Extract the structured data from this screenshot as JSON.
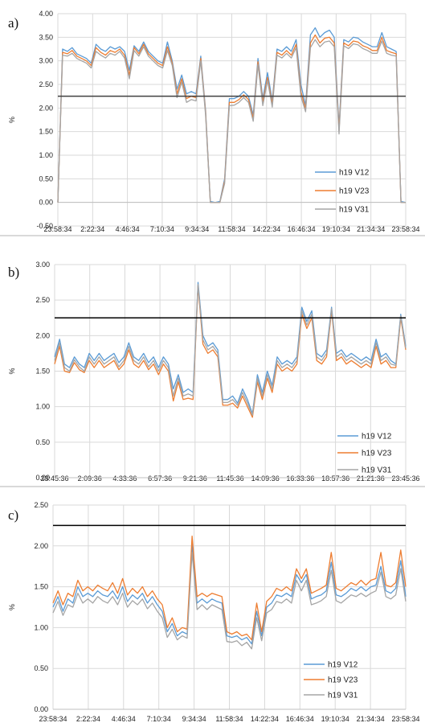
{
  "chart_data": [
    {
      "type": "line",
      "panel_label": "a)",
      "ylabel": "%",
      "ylim": [
        -0.5,
        4.0
      ],
      "yticks": [
        -0.5,
        0.0,
        0.5,
        1.0,
        1.5,
        2.0,
        2.5,
        3.0,
        3.5,
        4.0
      ],
      "ytick_labels": [
        "-0.50",
        "0.00",
        "0.50",
        "1.00",
        "1.50",
        "2.00",
        "2.50",
        "3.00",
        "3.50",
        "4.00"
      ],
      "xtick_labels": [
        "23:58:34",
        "2:22:34",
        "4:46:34",
        "7:10:34",
        "9:34:34",
        "11:58:34",
        "14:22:34",
        "16:46:34",
        "19:10:34",
        "21:34:34",
        "23:58:34"
      ],
      "grid": true,
      "legend_position": "bottom-right",
      "threshold": 2.25,
      "colors": {
        "h19 V12": "#5b9bd5",
        "h19 V23": "#ed7d31",
        "h19 V31": "#a5a5a5",
        "threshold": "#404040"
      },
      "series": [
        {
          "name": "h19 V12",
          "values": [
            0.0,
            3.25,
            3.2,
            3.28,
            3.15,
            3.1,
            3.05,
            2.95,
            3.35,
            3.25,
            3.2,
            3.3,
            3.25,
            3.3,
            3.2,
            2.8,
            3.32,
            3.2,
            3.4,
            3.2,
            3.1,
            3.0,
            2.95,
            3.4,
            3.0,
            2.4,
            2.7,
            2.3,
            2.35,
            2.3,
            3.1,
            1.95,
            0.02,
            0.0,
            0.02,
            0.5,
            2.2,
            2.2,
            2.25,
            2.35,
            2.25,
            1.85,
            3.05,
            2.2,
            2.75,
            2.15,
            3.25,
            3.2,
            3.3,
            3.2,
            3.45,
            2.5,
            2.05,
            3.55,
            3.7,
            3.5,
            3.6,
            3.65,
            3.5,
            1.6,
            3.45,
            3.4,
            3.5,
            3.48,
            3.4,
            3.35,
            3.3,
            3.3,
            3.6,
            3.3,
            3.25,
            3.2,
            0.02,
            0.0
          ]
        },
        {
          "name": "h19 V23",
          "values": [
            0.0,
            3.18,
            3.15,
            3.22,
            3.1,
            3.05,
            3.0,
            2.9,
            3.28,
            3.18,
            3.12,
            3.22,
            3.18,
            3.25,
            3.12,
            2.7,
            3.28,
            3.15,
            3.35,
            3.15,
            3.05,
            2.95,
            2.9,
            3.3,
            2.95,
            2.3,
            2.62,
            2.2,
            2.25,
            2.22,
            3.05,
            1.9,
            0.0,
            0.0,
            0.0,
            0.45,
            2.12,
            2.12,
            2.18,
            2.28,
            2.18,
            1.78,
            2.98,
            2.12,
            2.65,
            2.08,
            3.18,
            3.12,
            3.22,
            3.12,
            3.35,
            2.35,
            1.98,
            3.38,
            3.55,
            3.38,
            3.48,
            3.5,
            3.38,
            1.52,
            3.38,
            3.32,
            3.42,
            3.4,
            3.32,
            3.28,
            3.22,
            3.22,
            3.5,
            3.22,
            3.18,
            3.15,
            0.0,
            0.0
          ]
        },
        {
          "name": "h19 V31",
          "values": [
            0.0,
            3.12,
            3.1,
            3.16,
            3.05,
            3.0,
            2.95,
            2.85,
            3.2,
            3.12,
            3.06,
            3.16,
            3.12,
            3.2,
            3.06,
            2.62,
            3.22,
            3.1,
            3.3,
            3.1,
            3.0,
            2.9,
            2.85,
            3.22,
            2.9,
            2.22,
            2.55,
            2.12,
            2.18,
            2.15,
            3.0,
            1.85,
            0.0,
            0.0,
            0.0,
            0.4,
            2.05,
            2.06,
            2.12,
            2.22,
            2.12,
            1.72,
            2.92,
            2.05,
            2.58,
            2.02,
            3.12,
            3.06,
            3.16,
            3.06,
            3.28,
            2.25,
            1.92,
            3.28,
            3.45,
            3.3,
            3.4,
            3.42,
            3.3,
            1.45,
            3.32,
            3.26,
            3.36,
            3.34,
            3.26,
            3.22,
            3.16,
            3.16,
            3.42,
            3.16,
            3.12,
            3.1,
            0.0,
            0.0
          ]
        }
      ]
    },
    {
      "type": "line",
      "panel_label": "b)",
      "ylabel": "%",
      "ylim": [
        0.0,
        3.0
      ],
      "yticks": [
        0.0,
        0.5,
        1.0,
        1.5,
        2.0,
        2.5,
        3.0
      ],
      "ytick_labels": [
        "0.00",
        "0.50",
        "1.00",
        "1.50",
        "2.00",
        "2.50",
        "3.00"
      ],
      "xtick_labels": [
        "23:45:36",
        "2:09:36",
        "4:33:36",
        "6:57:36",
        "9:21:36",
        "11:45:36",
        "14:09:36",
        "16:33:36",
        "18:57:36",
        "21:21:36",
        "23:45:36"
      ],
      "grid": true,
      "legend_position": "bottom-right",
      "threshold": 2.25,
      "colors": {
        "h19 V12": "#5b9bd5",
        "h19 V23": "#ed7d31",
        "h19 V31": "#a5a5a5",
        "threshold": "#000000"
      },
      "series": [
        {
          "name": "h19 V12",
          "values": [
            1.7,
            1.95,
            1.6,
            1.55,
            1.7,
            1.6,
            1.55,
            1.75,
            1.65,
            1.75,
            1.65,
            1.7,
            1.75,
            1.62,
            1.7,
            1.9,
            1.7,
            1.65,
            1.75,
            1.62,
            1.7,
            1.55,
            1.7,
            1.6,
            1.25,
            1.45,
            1.2,
            1.25,
            1.2,
            2.75,
            2.0,
            1.85,
            1.9,
            1.8,
            1.1,
            1.1,
            1.15,
            1.05,
            1.25,
            1.1,
            0.9,
            1.45,
            1.2,
            1.5,
            1.3,
            1.7,
            1.6,
            1.65,
            1.6,
            1.7,
            2.4,
            2.2,
            2.35,
            1.75,
            1.7,
            1.8,
            2.4,
            1.75,
            1.8,
            1.7,
            1.75,
            1.7,
            1.65,
            1.7,
            1.65,
            1.95,
            1.7,
            1.75,
            1.65,
            1.6,
            2.3,
            1.85
          ]
        },
        {
          "name": "h19 V23",
          "values": [
            1.6,
            1.85,
            1.5,
            1.48,
            1.62,
            1.52,
            1.48,
            1.65,
            1.55,
            1.65,
            1.55,
            1.6,
            1.65,
            1.52,
            1.6,
            1.8,
            1.6,
            1.55,
            1.65,
            1.52,
            1.6,
            1.45,
            1.6,
            1.5,
            1.08,
            1.35,
            1.1,
            1.12,
            1.1,
            2.7,
            1.88,
            1.75,
            1.8,
            1.7,
            1.02,
            1.02,
            1.05,
            0.98,
            1.15,
            1.0,
            0.85,
            1.35,
            1.1,
            1.4,
            1.2,
            1.6,
            1.5,
            1.55,
            1.5,
            1.6,
            2.3,
            2.1,
            2.25,
            1.65,
            1.6,
            1.7,
            2.35,
            1.65,
            1.7,
            1.6,
            1.65,
            1.6,
            1.55,
            1.6,
            1.55,
            1.85,
            1.6,
            1.65,
            1.55,
            1.55,
            2.25,
            1.8
          ]
        },
        {
          "name": "h19 V31",
          "values": [
            1.65,
            1.9,
            1.55,
            1.5,
            1.66,
            1.56,
            1.5,
            1.7,
            1.6,
            1.7,
            1.6,
            1.65,
            1.7,
            1.56,
            1.65,
            1.85,
            1.65,
            1.6,
            1.7,
            1.56,
            1.65,
            1.5,
            1.65,
            1.55,
            1.15,
            1.4,
            1.15,
            1.18,
            1.15,
            2.72,
            1.94,
            1.8,
            1.85,
            1.75,
            1.06,
            1.06,
            1.1,
            1.02,
            1.2,
            1.05,
            0.88,
            1.4,
            1.15,
            1.45,
            1.25,
            1.65,
            1.55,
            1.6,
            1.55,
            1.65,
            2.35,
            2.15,
            2.3,
            1.7,
            1.65,
            1.75,
            2.38,
            1.7,
            1.75,
            1.65,
            1.7,
            1.65,
            1.6,
            1.65,
            1.6,
            1.9,
            1.65,
            1.7,
            1.6,
            1.58,
            2.28,
            1.82
          ]
        }
      ]
    },
    {
      "type": "line",
      "panel_label": "c)",
      "ylabel": "%",
      "ylim": [
        0.0,
        2.5
      ],
      "yticks": [
        0.0,
        0.5,
        1.0,
        1.5,
        2.0,
        2.5
      ],
      "ytick_labels": [
        "0.00",
        "0.50",
        "1.00",
        "1.50",
        "2.00",
        "2.50"
      ],
      "xtick_labels": [
        "23:58:34",
        "2:22:34",
        "4:46:34",
        "7:10:34",
        "9:34:34",
        "11:58:34",
        "14:22:34",
        "16:46:34",
        "19:10:34",
        "21:34:34",
        "23:58:34"
      ],
      "grid": true,
      "legend_position": "bottom-right",
      "threshold": 2.25,
      "colors": {
        "h19 V12": "#5b9bd5",
        "h19 V23": "#ed7d31",
        "h19 V31": "#a5a5a5",
        "threshold": "#000000"
      },
      "series": [
        {
          "name": "h19 V12",
          "values": [
            1.25,
            1.38,
            1.2,
            1.35,
            1.3,
            1.5,
            1.38,
            1.42,
            1.38,
            1.45,
            1.4,
            1.38,
            1.45,
            1.35,
            1.5,
            1.32,
            1.4,
            1.35,
            1.42,
            1.3,
            1.38,
            1.28,
            1.2,
            0.95,
            1.05,
            0.9,
            0.95,
            0.92,
            2.02,
            1.3,
            1.35,
            1.3,
            1.35,
            1.32,
            1.3,
            0.9,
            0.88,
            0.9,
            0.85,
            0.88,
            0.8,
            1.2,
            0.9,
            1.25,
            1.3,
            1.4,
            1.38,
            1.42,
            1.38,
            1.65,
            1.55,
            1.65,
            1.35,
            1.38,
            1.4,
            1.45,
            1.8,
            1.4,
            1.38,
            1.42,
            1.48,
            1.45,
            1.5,
            1.45,
            1.5,
            1.52,
            1.75,
            1.45,
            1.42,
            1.48,
            1.82,
            1.38
          ]
        },
        {
          "name": "h19 V23",
          "values": [
            1.3,
            1.45,
            1.28,
            1.42,
            1.38,
            1.58,
            1.45,
            1.5,
            1.45,
            1.52,
            1.48,
            1.45,
            1.55,
            1.42,
            1.6,
            1.4,
            1.48,
            1.42,
            1.5,
            1.38,
            1.45,
            1.35,
            1.28,
            1.0,
            1.12,
            0.95,
            1.0,
            0.98,
            2.12,
            1.38,
            1.42,
            1.38,
            1.42,
            1.4,
            1.38,
            0.95,
            0.92,
            0.95,
            0.9,
            0.92,
            0.85,
            1.3,
            0.95,
            1.32,
            1.38,
            1.48,
            1.45,
            1.5,
            1.45,
            1.72,
            1.6,
            1.72,
            1.42,
            1.45,
            1.48,
            1.52,
            1.92,
            1.48,
            1.45,
            1.5,
            1.55,
            1.52,
            1.58,
            1.52,
            1.58,
            1.6,
            1.92,
            1.52,
            1.5,
            1.55,
            1.95,
            1.5
          ]
        },
        {
          "name": "h19 V31",
          "values": [
            1.18,
            1.32,
            1.15,
            1.28,
            1.25,
            1.42,
            1.3,
            1.35,
            1.3,
            1.38,
            1.33,
            1.3,
            1.38,
            1.28,
            1.42,
            1.25,
            1.33,
            1.28,
            1.35,
            1.23,
            1.3,
            1.2,
            1.12,
            0.88,
            0.98,
            0.85,
            0.9,
            0.87,
            1.92,
            1.22,
            1.28,
            1.22,
            1.28,
            1.25,
            1.22,
            0.83,
            0.82,
            0.84,
            0.78,
            0.82,
            0.74,
            1.12,
            0.84,
            1.18,
            1.22,
            1.32,
            1.3,
            1.35,
            1.3,
            1.58,
            1.45,
            1.58,
            1.28,
            1.3,
            1.33,
            1.38,
            1.7,
            1.33,
            1.3,
            1.35,
            1.4,
            1.38,
            1.42,
            1.38,
            1.42,
            1.45,
            1.68,
            1.38,
            1.35,
            1.4,
            1.72,
            1.32
          ]
        }
      ]
    }
  ]
}
